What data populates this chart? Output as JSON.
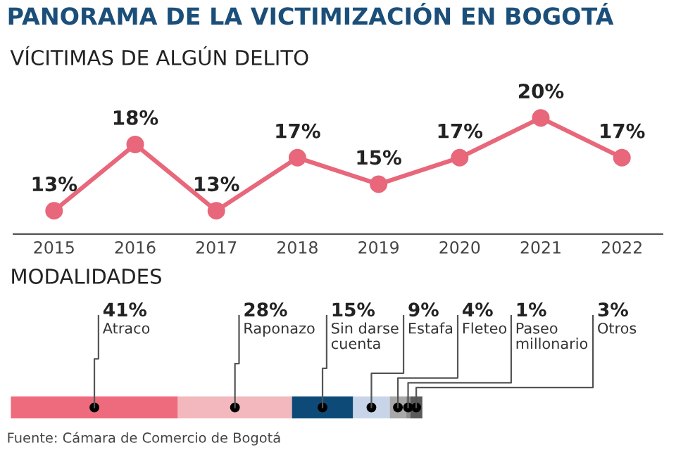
{
  "chart_data": [
    {
      "type": "line",
      "title": "PANORAMA DE LA VICTIMIZACIÓN EN BOGOTÁ",
      "subtitle": "VÍCITIMAS DE ALGÚN DELITO",
      "categories": [
        "2015",
        "2016",
        "2017",
        "2018",
        "2019",
        "2020",
        "2021",
        "2022"
      ],
      "series": [
        {
          "color": "#e8677a",
          "values": [
            13,
            18,
            13,
            17,
            15,
            17,
            20,
            17
          ],
          "value_labels": [
            "13%",
            "18%",
            "13%",
            "17%",
            "15%",
            "17%",
            "20%",
            "17%"
          ]
        }
      ],
      "marker": "circle",
      "line_style": "solid",
      "grid": false,
      "legend": false,
      "tick_labels": "x"
    },
    {
      "type": "bar",
      "orientation": "horizontal",
      "stacked": true,
      "title": "MODALIDADES",
      "categories": [
        null
      ],
      "series": [
        {
          "name": "Atraco",
          "color": "#ee6b7d",
          "values": [
            41
          ],
          "value_labels": [
            "41%"
          ]
        },
        {
          "name": "Raponazo",
          "color": "#f2b8bd",
          "values": [
            28
          ],
          "value_labels": [
            "28%"
          ]
        },
        {
          "name": "Sin darse\ncuenta",
          "color": "#0e4a78",
          "values": [
            15
          ],
          "value_labels": [
            "15%"
          ]
        },
        {
          "name": "Estafa",
          "color": "#c8d5e8",
          "values": [
            9
          ],
          "value_labels": [
            "9%"
          ]
        },
        {
          "name": "Fleteo",
          "color": "#a8a8a8",
          "values": [
            4
          ],
          "value_labels": [
            "4%"
          ]
        },
        {
          "name": "Paseo\nmillonario",
          "color": "#8c8c8c",
          "values": [
            1
          ],
          "value_labels": [
            "1%"
          ]
        },
        {
          "name": "Otros",
          "color": "#5a5a5a",
          "values": [
            3
          ],
          "value_labels": [
            "3%"
          ]
        }
      ],
      "legend": false,
      "tick_labels": false,
      "annotations": [
        "Fuente: Cámara de Comercio de Bogotá"
      ]
    }
  ]
}
